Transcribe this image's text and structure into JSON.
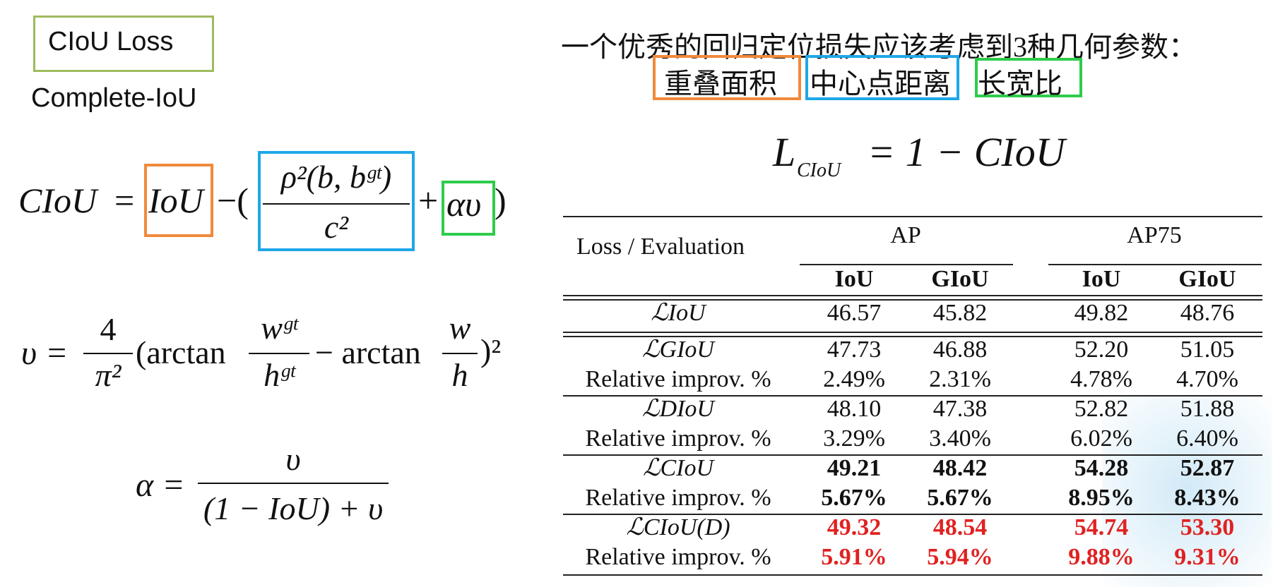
{
  "left": {
    "title": "CIoU Loss",
    "subtitle": "Complete-IoU",
    "formula1": {
      "lhs": "CIoU",
      "eq": "=",
      "iou": "IoU",
      "minus_open": "−(",
      "num": "ρ²(b, bᵍᵗ)",
      "den": "c²",
      "plus": "+",
      "alpha_v": "αυ",
      "close": ")"
    },
    "formula2": {
      "lhs": "υ =",
      "num": "4",
      "den": "π²",
      "arctan1": "(arctan",
      "f1num": "wᵍᵗ",
      "f1den": "hᵍᵗ",
      "arctan2": "− arctan",
      "f2num": "w",
      "f2den": "h",
      "close": ")²"
    },
    "formula3": {
      "lhs": "α =",
      "num": "υ",
      "den": "(1 − IoU) + υ"
    }
  },
  "right": {
    "heading": "一个优秀的回归定位损失应该考虑到3种几何参数：",
    "params": [
      "重叠面积",
      "中心点距离",
      "长宽比"
    ],
    "loss_formula": "L",
    "loss_sub": "CIoU",
    "loss_rhs": "= 1 − CIoU",
    "table": {
      "header_row_label": "Loss / Evaluation",
      "groups": [
        "AP",
        "AP75"
      ],
      "subheaders": [
        "IoU",
        "GIoU",
        "IoU",
        "GIoU"
      ],
      "rows": [
        {
          "label": "ℒIoU",
          "values": [
            "46.57",
            "45.82",
            "49.82",
            "48.76"
          ],
          "style": "normal"
        },
        {
          "label": "ℒGIoU",
          "values": [
            "47.73",
            "46.88",
            "52.20",
            "51.05"
          ],
          "style": "normal"
        },
        {
          "label": "Relative improv. %",
          "values": [
            "2.49%",
            "2.31%",
            "4.78%",
            "4.70%"
          ],
          "style": "normal"
        },
        {
          "label": "ℒDIoU",
          "values": [
            "48.10",
            "47.38",
            "52.82",
            "51.88"
          ],
          "style": "normal"
        },
        {
          "label": "Relative improv. %",
          "values": [
            "3.29%",
            "3.40%",
            "6.02%",
            "6.40%"
          ],
          "style": "normal"
        },
        {
          "label": "ℒCIoU",
          "values": [
            "49.21",
            "48.42",
            "54.28",
            "52.87"
          ],
          "style": "bold"
        },
        {
          "label": "Relative improv. %",
          "values": [
            "5.67%",
            "5.67%",
            "8.95%",
            "8.43%"
          ],
          "style": "bold"
        },
        {
          "label": "ℒCIoU(D)",
          "values": [
            "49.32",
            "48.54",
            "54.74",
            "53.30"
          ],
          "style": "red"
        },
        {
          "label": "Relative improv. %",
          "values": [
            "5.91%",
            "5.94%",
            "9.88%",
            "9.31%"
          ],
          "style": "red"
        }
      ]
    }
  },
  "colors": {
    "orange": "#f08a3c",
    "blue": "#1ea7e8",
    "green": "#2ecc4a",
    "title_border": "#9dbb5e",
    "red": "#e02222"
  }
}
